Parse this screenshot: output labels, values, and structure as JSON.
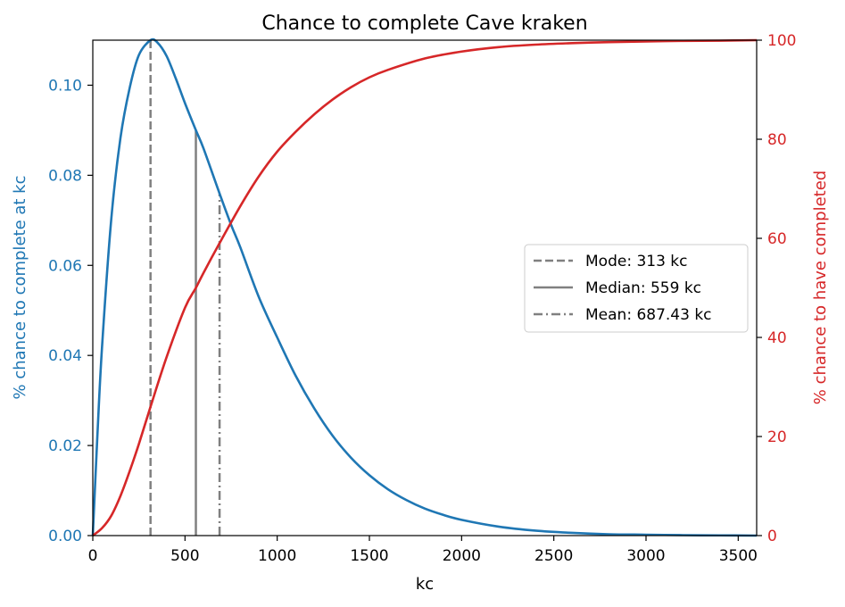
{
  "chart_data": {
    "type": "line",
    "title": "Chance to complete Cave kraken",
    "xlabel": "kc",
    "ylabel_left": "% chance to complete at kc",
    "ylabel_right": "% chance to have completed",
    "xlim": [
      0,
      3600
    ],
    "ylim_left": [
      0,
      0.11
    ],
    "ylim_right": [
      0,
      100
    ],
    "x_ticks": [
      0,
      500,
      1000,
      1500,
      2000,
      2500,
      3000,
      3500
    ],
    "y_ticks_left": [
      "0.00",
      "0.02",
      "0.04",
      "0.06",
      "0.08",
      "0.10"
    ],
    "y_ticks_right": [
      0,
      20,
      40,
      60,
      80,
      100
    ],
    "grid": false,
    "legend_position": "center-right",
    "colors": {
      "left_series": "#1f77b4",
      "right_series": "#d62728",
      "markers": "#808080"
    },
    "series": [
      {
        "axis": "left",
        "x": [
          0,
          25,
          50,
          100,
          150,
          200,
          250,
          313,
          350,
          400,
          450,
          500,
          559,
          600,
          687,
          750,
          800,
          900,
          1000,
          1100,
          1200,
          1300,
          1400,
          1500,
          1600,
          1700,
          1800,
          1900,
          2000,
          2200,
          2400,
          2600,
          2800,
          3000,
          3200,
          3400,
          3600
        ],
        "values": [
          0.0,
          0.0223,
          0.0418,
          0.0702,
          0.0883,
          0.0994,
          0.1067,
          0.11,
          0.1095,
          0.1065,
          0.1015,
          0.096,
          0.09,
          0.086,
          0.076,
          0.069,
          0.064,
          0.053,
          0.044,
          0.0355,
          0.0283,
          0.0222,
          0.0173,
          0.0134,
          0.0103,
          0.0079,
          0.006,
          0.0046,
          0.0035,
          0.002,
          0.0011,
          0.0006,
          0.0003,
          0.0002,
          0.0001,
          5e-05,
          0.0
        ]
      },
      {
        "axis": "right",
        "x": [
          0,
          50,
          100,
          150,
          200,
          250,
          313,
          400,
          500,
          559,
          600,
          687,
          800,
          900,
          1000,
          1100,
          1200,
          1300,
          1400,
          1500,
          1600,
          1800,
          2000,
          2200,
          2400,
          2600,
          2800,
          3000,
          3200,
          3400,
          3600
        ],
        "values": [
          0,
          1.5,
          4.0,
          8.0,
          13.0,
          18.5,
          26.0,
          36.0,
          46.0,
          50.0,
          53.0,
          59.0,
          66.5,
          72.5,
          77.5,
          81.5,
          85.0,
          88.0,
          90.5,
          92.5,
          94.0,
          96.3,
          97.7,
          98.6,
          99.1,
          99.4,
          99.6,
          99.75,
          99.85,
          99.9,
          100.0
        ]
      }
    ],
    "vlines": [
      {
        "label": "Mode: 313 kc",
        "x": 313,
        "style": "dashed",
        "ymax": 0.11
      },
      {
        "label": "Median: 559 kc",
        "x": 559,
        "style": "solid",
        "ymax": 0.09
      },
      {
        "label": "Mean: 687.43 kc",
        "x": 687.43,
        "style": "dashdot",
        "ymax": 0.076
      }
    ]
  }
}
